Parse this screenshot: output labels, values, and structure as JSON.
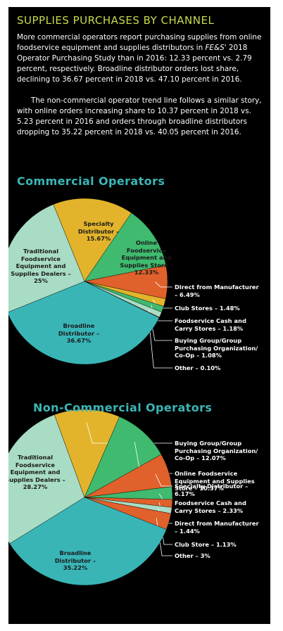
{
  "header": {
    "title": "SUPPLIES PURCHASES BY CHANNEL",
    "paragraphs": [
      {
        "before": "More commercial operators report purchasing supplies from online foodservice equipment and supplies distributors in ",
        "italic": "FE&S'",
        "after": " 2018 Operator Purchasing Study than in 2016: 12.33 percent vs. 2.79 percent, respectively. Broadline distributor orders lost share, declining to 36.67 percent in 2018 vs. 47.10 percent  in 2016."
      },
      {
        "before": "The non-commercial operator trend line follows a similar story, with online orders increasing share to 10.37 percent in 2018 vs. 5.23 percent in 2016 and orders through broadline distributors dropping to 35.22 percent in 2018 vs. 40.05 percent in 2016."
      }
    ]
  },
  "chart_data": [
    {
      "type": "pie",
      "title": "Commercial Operators",
      "values": [
        15.67,
        12.33,
        6.49,
        1.48,
        1.18,
        1.08,
        0.1,
        36.67,
        25
      ],
      "value_labels": [
        "Specialty Distributor – 15.67%",
        "Online Foodservice Equipment and Supplies Store – 12.33%",
        "Direct from Manufacturer – 6.49%",
        "Club Stores – 1.48%",
        "Foodservice Cash and Carry Stores – 1.18%",
        "Buying Group/Group Purchasing Organization/ Co-Op – 1.08%",
        "Other – 0.10%",
        "Broadline Distributor – 36.67%",
        "Traditional Foodservice Equipment and Supplies Dealers – 25%"
      ],
      "colors": [
        "#e3b42b",
        "#3fba6f",
        "#e0612b",
        "#e3b42b",
        "#3fba6f",
        "#a9dcc5",
        "#e0612b",
        "#39b5b6",
        "#a9dcc5"
      ]
    },
    {
      "type": "pie",
      "title": "Non-Commercial Operators",
      "values": [
        12.07,
        10.37,
        6.17,
        2.33,
        1.44,
        1.13,
        3,
        35.22,
        28.27
      ],
      "value_labels": [
        "Buying Group/Group Purchasing Organization/ Co-Op – 12.07%",
        "Online Foodservice Equipment and Supplies Store – 10.37%",
        "Specialty Distributor – 6.17%",
        "Foodservice Cash and Carry Stores – 2.33%",
        "Direct from Manufacturer – 1.44%",
        "Club Store  – 1.13%",
        "Other – 3%",
        "Broadline Distributor – 35.22%",
        "Traditional Foodservice Equipment and Supplies Dealers – 28.27%"
      ],
      "colors": [
        "#e3b42b",
        "#3fba6f",
        "#e0612b",
        "#3fba6f",
        "#e0612b",
        "#a9dcc5",
        "#e0612b",
        "#39b5b6",
        "#a9dcc5"
      ]
    }
  ]
}
